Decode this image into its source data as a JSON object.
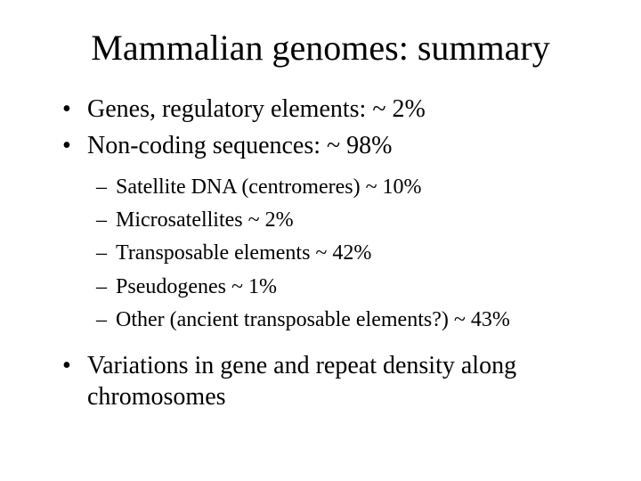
{
  "title": "Mammalian genomes: summary",
  "bullets": [
    {
      "text": "Genes, regulatory elements: ~ 2%"
    },
    {
      "text": "Non-coding sequences: ~ 98%"
    },
    {
      "text": "Variations in gene and repeat density along chromosomes"
    }
  ],
  "sub_bullets": [
    {
      "text": "Satellite DNA (centromeres) ~ 10%"
    },
    {
      "text": "Microsatellites ~ 2%"
    },
    {
      "text": "Transposable elements ~ 42%"
    },
    {
      "text": "Pseudogenes ~ 1%"
    },
    {
      "text": "Other (ancient transposable elements?) ~ 43%"
    }
  ],
  "styling": {
    "background_color": "#ffffff",
    "text_color": "#000000",
    "font_family": "Times New Roman",
    "title_fontsize": 40,
    "bullet_fontsize": 28,
    "sub_bullet_fontsize": 24
  }
}
